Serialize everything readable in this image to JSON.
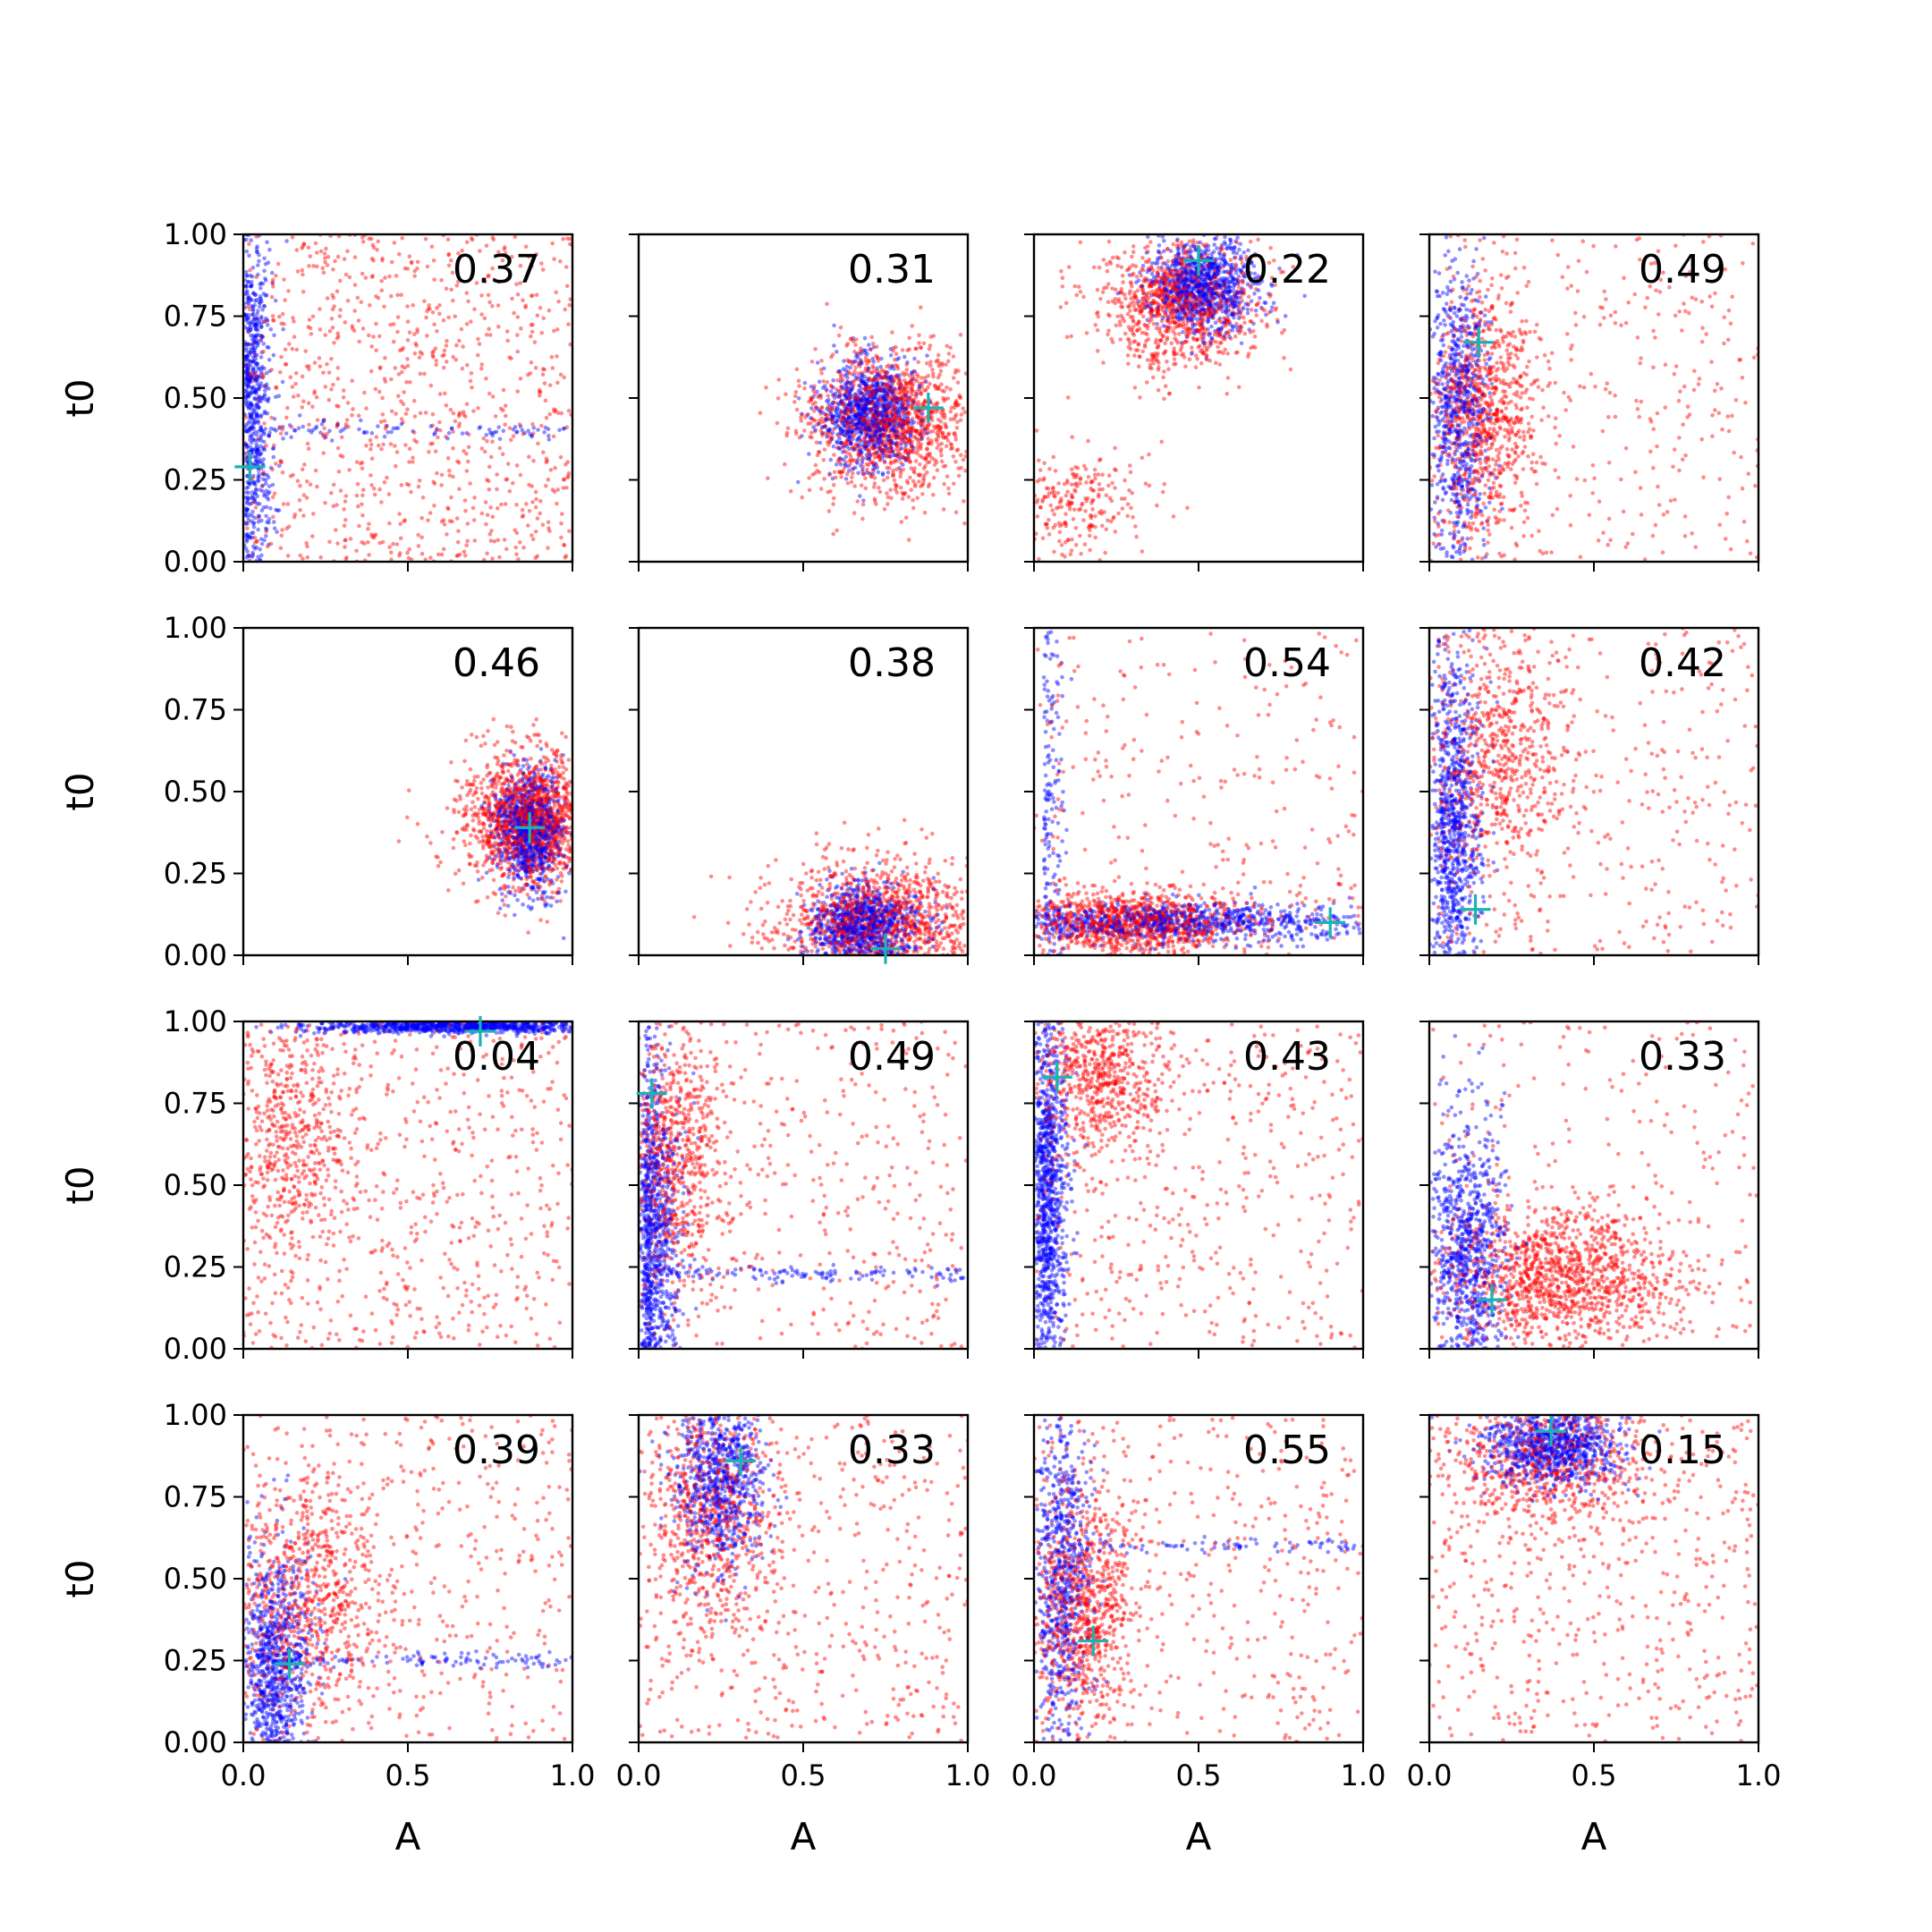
{
  "figure": {
    "rows": 4,
    "cols": 4,
    "shared_x": true,
    "shared_y": true
  },
  "colors": {
    "series_red": "#ff0000",
    "series_blue": "#0000ff",
    "marker": "#1ab3b3",
    "axes": "#000000"
  },
  "chart_data": {
    "type": "scatter",
    "xlabel": "A",
    "ylabel": "t0",
    "xlim": [
      0,
      1
    ],
    "ylim": [
      0,
      1
    ],
    "xticks": [
      "0.0",
      "0.5",
      "1.0"
    ],
    "yticks": [
      "0.00",
      "0.25",
      "0.50",
      "0.75",
      "1.00"
    ],
    "grid": false,
    "legend": "none",
    "panels": [
      {
        "row": 0,
        "col": 0,
        "label": "0.37",
        "marker": [
          0.02,
          0.29
        ],
        "red": {
          "shape": "uniform",
          "x": [
            0.0,
            1.0
          ],
          "y": [
            0.0,
            1.0
          ],
          "n": 900
        },
        "blue": {
          "shape": "column",
          "center": [
            0.03,
            0.5
          ],
          "sd": [
            0.04,
            0.3
          ],
          "n": 700,
          "tail_y": 0.4
        }
      },
      {
        "row": 0,
        "col": 1,
        "label": "0.31",
        "marker": [
          0.88,
          0.47
        ],
        "red": {
          "shape": "blob",
          "center": [
            0.76,
            0.43
          ],
          "sd": [
            0.13,
            0.11
          ],
          "n": 1300
        },
        "blue": {
          "shape": "blob",
          "center": [
            0.7,
            0.45
          ],
          "sd": [
            0.07,
            0.08
          ],
          "n": 900
        }
      },
      {
        "row": 0,
        "col": 2,
        "label": "0.22",
        "marker": [
          0.5,
          0.92
        ],
        "red": {
          "shape": "blob",
          "center": [
            0.45,
            0.78
          ],
          "sd": [
            0.12,
            0.1
          ],
          "n": 1000,
          "tail": [
            [
              0.12,
              0.18,
              0.1,
              0.08,
              250
            ]
          ]
        },
        "blue": {
          "shape": "blob",
          "center": [
            0.52,
            0.85
          ],
          "sd": [
            0.08,
            0.07
          ],
          "n": 900
        }
      },
      {
        "row": 0,
        "col": 3,
        "label": "0.49",
        "marker": [
          0.15,
          0.67
        ],
        "red": {
          "shape": "mixed",
          "center": [
            0.17,
            0.45
          ],
          "sd": [
            0.08,
            0.18
          ],
          "n": 800,
          "uniform_n": 350
        },
        "blue": {
          "shape": "column",
          "center": [
            0.13,
            0.45
          ],
          "sd": [
            0.05,
            0.22
          ],
          "n": 700
        }
      },
      {
        "row": 1,
        "col": 0,
        "label": "0.46",
        "marker": [
          0.87,
          0.39
        ],
        "red": {
          "shape": "blob",
          "center": [
            0.87,
            0.42
          ],
          "sd": [
            0.1,
            0.1
          ],
          "n": 1500
        },
        "blue": {
          "shape": "blob",
          "center": [
            0.87,
            0.38
          ],
          "sd": [
            0.05,
            0.09
          ],
          "n": 900
        }
      },
      {
        "row": 1,
        "col": 1,
        "label": "0.38",
        "marker": [
          0.75,
          0.02
        ],
        "red": {
          "shape": "blob",
          "center": [
            0.73,
            0.1
          ],
          "sd": [
            0.16,
            0.1
          ],
          "n": 1300
        },
        "blue": {
          "shape": "blob",
          "center": [
            0.68,
            0.09
          ],
          "sd": [
            0.08,
            0.06
          ],
          "n": 900
        }
      },
      {
        "row": 1,
        "col": 2,
        "label": "0.54",
        "marker": [
          0.9,
          0.1
        ],
        "red": {
          "shape": "band",
          "center": [
            0.3,
            0.1
          ],
          "sd": [
            0.18,
            0.05
          ],
          "n": 1100,
          "uniform_n": 250
        },
        "blue": {
          "shape": "band",
          "center": [
            0.45,
            0.1
          ],
          "sd": [
            0.3,
            0.03
          ],
          "n": 900,
          "col_n": 150
        }
      },
      {
        "row": 1,
        "col": 3,
        "label": "0.42",
        "marker": [
          0.14,
          0.14
        ],
        "red": {
          "shape": "mixed",
          "center": [
            0.2,
            0.6
          ],
          "sd": [
            0.12,
            0.2
          ],
          "n": 700,
          "uniform_n": 300
        },
        "blue": {
          "shape": "column",
          "center": [
            0.1,
            0.4
          ],
          "sd": [
            0.05,
            0.27
          ],
          "n": 900
        }
      },
      {
        "row": 2,
        "col": 0,
        "label": "0.04",
        "marker": [
          0.72,
          0.97
        ],
        "red": {
          "shape": "mixed",
          "center": [
            0.15,
            0.65
          ],
          "sd": [
            0.1,
            0.2
          ],
          "n": 500,
          "uniform_n": 600
        },
        "blue": {
          "shape": "band",
          "center": [
            0.65,
            0.985
          ],
          "sd": [
            0.22,
            0.01
          ],
          "n": 900
        }
      },
      {
        "row": 2,
        "col": 1,
        "label": "0.49",
        "marker": [
          0.04,
          0.78
        ],
        "red": {
          "shape": "mixed",
          "center": [
            0.1,
            0.6
          ],
          "sd": [
            0.08,
            0.2
          ],
          "n": 700,
          "uniform_n": 400
        },
        "blue": {
          "shape": "column",
          "center": [
            0.05,
            0.3
          ],
          "sd": [
            0.05,
            0.3
          ],
          "n": 1000,
          "tail_y": 0.23
        }
      },
      {
        "row": 2,
        "col": 2,
        "label": "0.43",
        "marker": [
          0.07,
          0.83
        ],
        "red": {
          "shape": "mixed",
          "center": [
            0.2,
            0.82
          ],
          "sd": [
            0.1,
            0.12
          ],
          "n": 600,
          "uniform_n": 450
        },
        "blue": {
          "shape": "column",
          "center": [
            0.05,
            0.45
          ],
          "sd": [
            0.04,
            0.3
          ],
          "n": 1000
        }
      },
      {
        "row": 2,
        "col": 3,
        "label": "0.33",
        "marker": [
          0.19,
          0.15
        ],
        "red": {
          "shape": "blob",
          "center": [
            0.4,
            0.22
          ],
          "sd": [
            0.18,
            0.1
          ],
          "n": 1200,
          "uniform_n": 250
        },
        "blue": {
          "shape": "column",
          "center": [
            0.18,
            0.28
          ],
          "sd": [
            0.05,
            0.22
          ],
          "n": 900
        }
      },
      {
        "row": 3,
        "col": 0,
        "label": "0.39",
        "marker": [
          0.14,
          0.24
        ],
        "red": {
          "shape": "mixed",
          "center": [
            0.2,
            0.45
          ],
          "sd": [
            0.12,
            0.18
          ],
          "n": 700,
          "uniform_n": 450
        },
        "blue": {
          "shape": "column",
          "center": [
            0.13,
            0.2
          ],
          "sd": [
            0.07,
            0.2
          ],
          "n": 900,
          "tail_y": 0.25
        }
      },
      {
        "row": 3,
        "col": 1,
        "label": "0.33",
        "marker": [
          0.31,
          0.86
        ],
        "red": {
          "shape": "mixed",
          "center": [
            0.22,
            0.7
          ],
          "sd": [
            0.1,
            0.2
          ],
          "n": 700,
          "uniform_n": 450
        },
        "blue": {
          "shape": "blob",
          "center": [
            0.25,
            0.8
          ],
          "sd": [
            0.07,
            0.14
          ],
          "n": 800
        }
      },
      {
        "row": 3,
        "col": 2,
        "label": "0.55",
        "marker": [
          0.18,
          0.31
        ],
        "red": {
          "shape": "mixed",
          "center": [
            0.15,
            0.4
          ],
          "sd": [
            0.08,
            0.18
          ],
          "n": 800,
          "uniform_n": 400
        },
        "blue": {
          "shape": "column",
          "center": [
            0.12,
            0.5
          ],
          "sd": [
            0.05,
            0.27
          ],
          "n": 700,
          "tail_y": 0.6
        }
      },
      {
        "row": 3,
        "col": 3,
        "label": "0.15",
        "marker": [
          0.37,
          0.95
        ],
        "red": {
          "shape": "mixed",
          "center": [
            0.35,
            0.85
          ],
          "sd": [
            0.15,
            0.1
          ],
          "n": 600,
          "uniform_n": 550
        },
        "blue": {
          "shape": "blob",
          "center": [
            0.38,
            0.9
          ],
          "sd": [
            0.1,
            0.06
          ],
          "n": 900
        }
      }
    ]
  }
}
